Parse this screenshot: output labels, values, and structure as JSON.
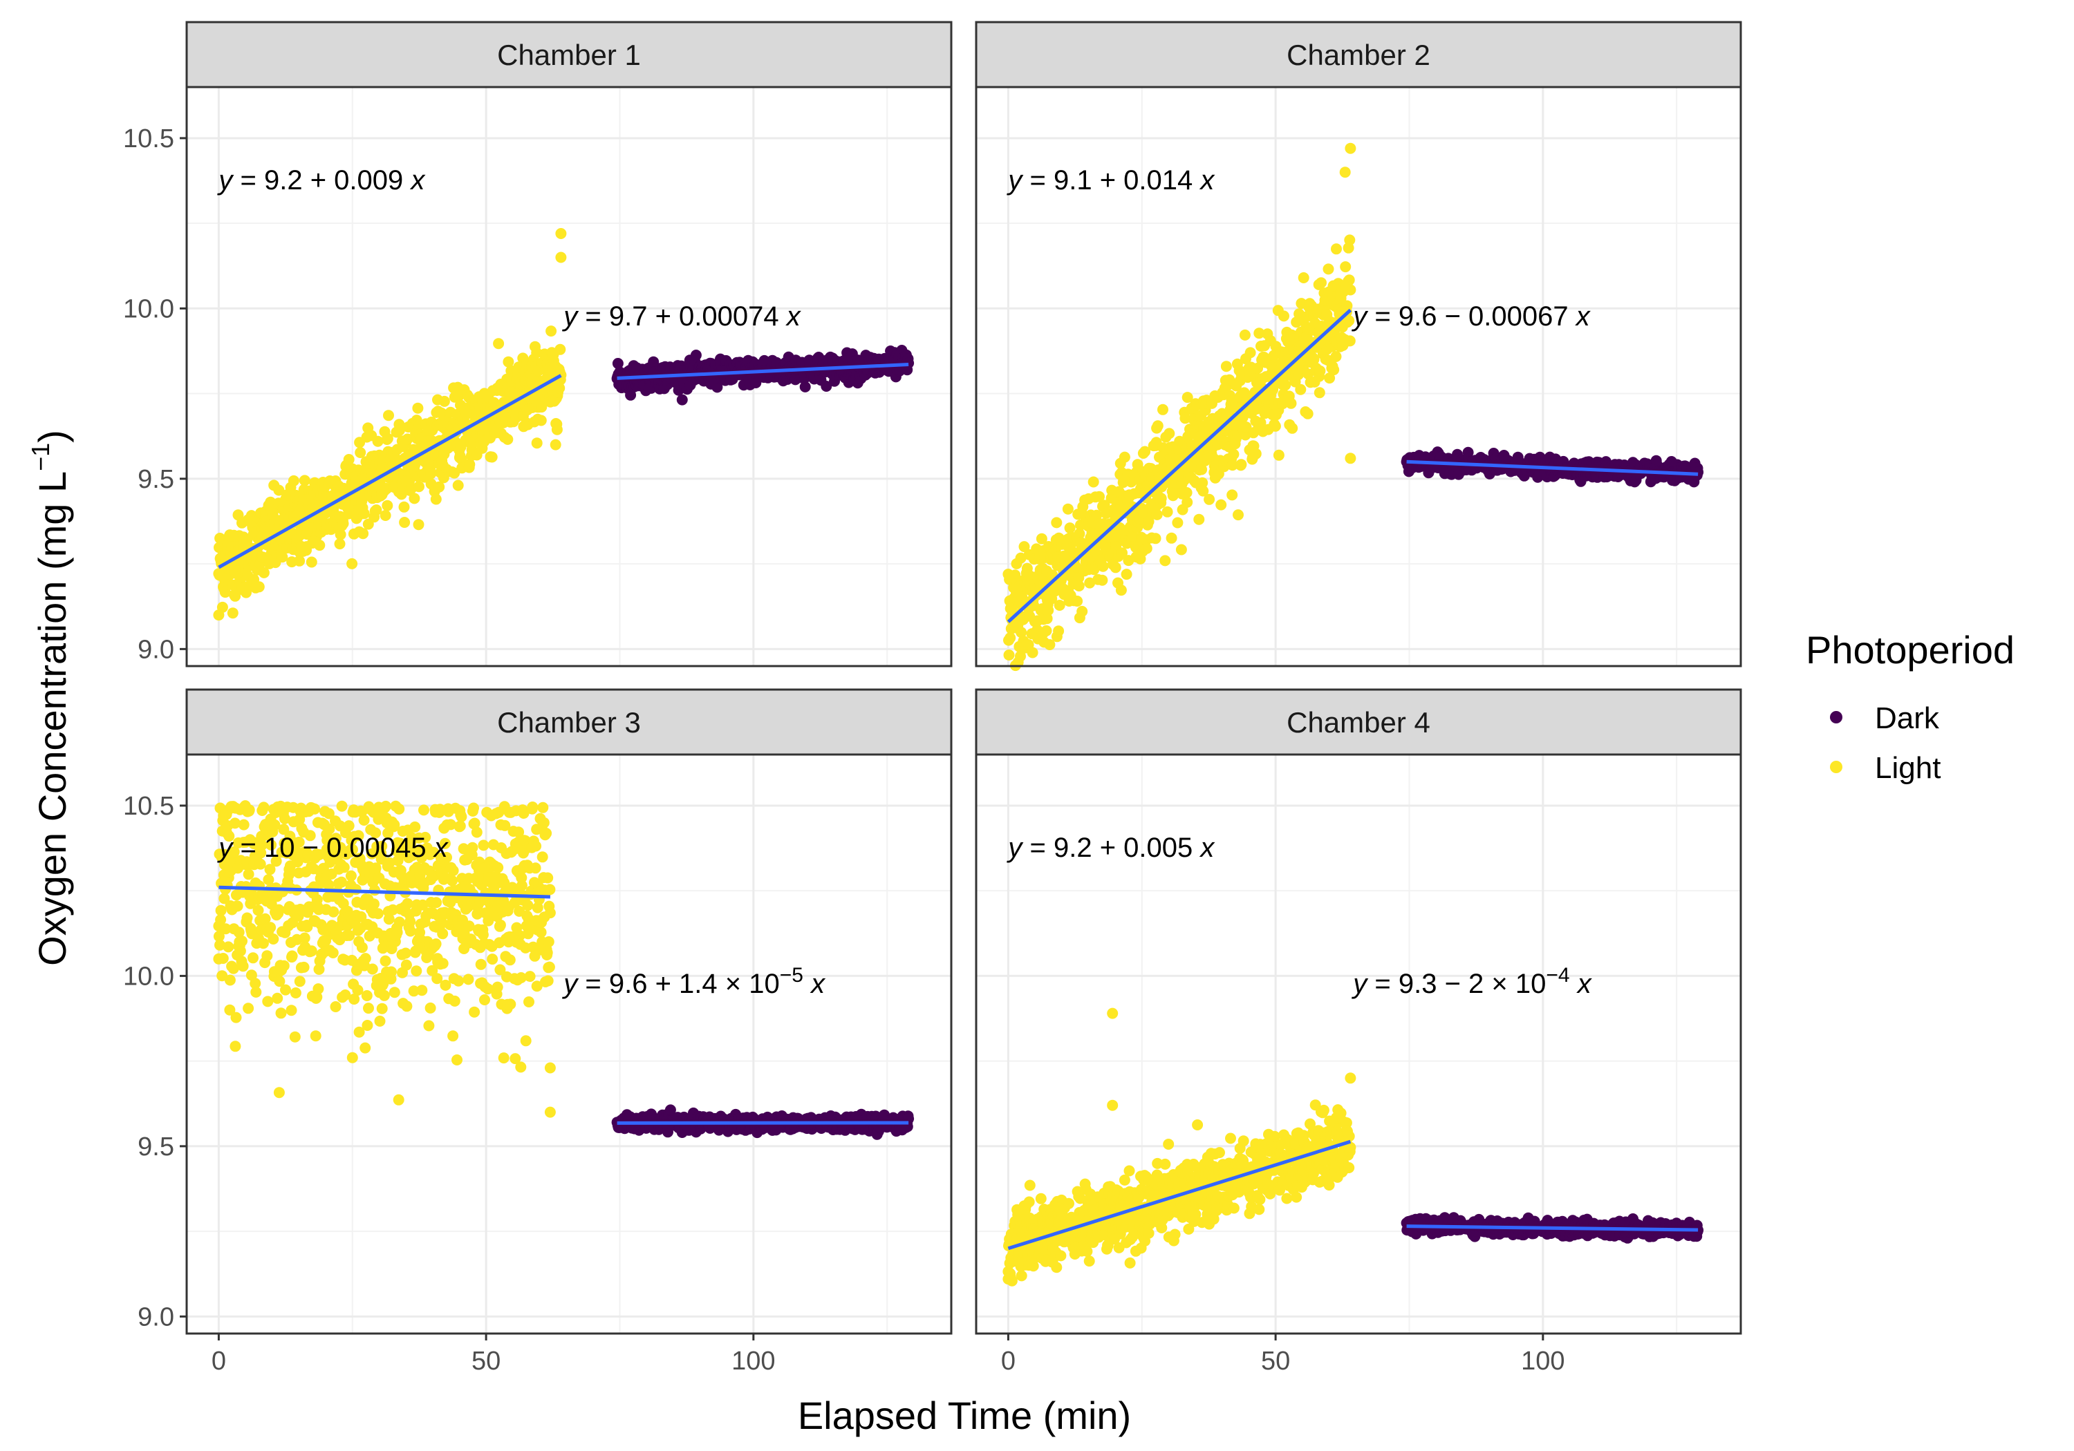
{
  "chart_data": {
    "type": "scatter",
    "xlabel": "Elapsed Time (min)",
    "ylabel": {
      "main": "Oxygen Concentration (mg L",
      "sup": "−1",
      "close": ")"
    },
    "xlim": [
      -6,
      137
    ],
    "ylim": [
      8.95,
      10.65
    ],
    "x_ticks": [
      0,
      50,
      100
    ],
    "y_ticks": [
      9.0,
      9.5,
      10.0,
      10.5
    ],
    "x_tick_labels": [
      "0",
      "50",
      "100"
    ],
    "y_tick_labels": [
      "9.0",
      "9.5",
      "10.0",
      "10.5"
    ],
    "grid": true,
    "legend": {
      "title": "Photoperiod",
      "placement": "right",
      "entries": [
        {
          "name": "Dark",
          "color": "#440154"
        },
        {
          "name": "Light",
          "color": "#FDE725"
        }
      ]
    },
    "fit_line_color": "#3366FF",
    "panels": [
      {
        "title": "Chamber 1",
        "light": {
          "x_range": [
            0,
            64
          ],
          "intercept": 9.24,
          "slope": 0.0088,
          "spread": 0.06,
          "outliers": [
            [
              0,
              9.1
            ],
            [
              64,
              10.22
            ],
            [
              64,
              10.15
            ],
            [
              63,
              9.6
            ]
          ]
        },
        "dark": {
          "x_range": [
            74.5,
            129
          ],
          "intercept": 9.74,
          "slope": 0.00074,
          "spread": 0.018
        },
        "eq_light": {
          "prefix": "y",
          "text": " = 9.2 + 0.009 ",
          "sup": "",
          "suffix": "x",
          "pos": [
            0,
            10.35
          ]
        },
        "eq_dark": {
          "prefix": "y",
          "text": " = 9.7 + 0.00074 ",
          "sup": "",
          "suffix": "x",
          "pos": [
            64.5,
            9.95
          ]
        }
      },
      {
        "title": "Chamber 2",
        "light": {
          "x_range": [
            0,
            64
          ],
          "intercept": 9.08,
          "slope": 0.0143,
          "spread": 0.08,
          "outliers": [
            [
              64,
              10.47
            ],
            [
              63,
              10.4
            ],
            [
              64,
              9.56
            ]
          ]
        },
        "dark": {
          "x_range": [
            74.5,
            129
          ],
          "intercept": 9.6,
          "slope": -0.00067,
          "spread": 0.012
        },
        "eq_light": {
          "prefix": "y",
          "text": " = 9.1 + 0.014 ",
          "sup": "",
          "suffix": "x",
          "pos": [
            0,
            10.35
          ]
        },
        "eq_dark": {
          "prefix": "y",
          "text": " = 9.6 − 0.00067 ",
          "sup": "",
          "suffix": "x",
          "pos": [
            64.5,
            9.95
          ]
        }
      },
      {
        "title": "Chamber 3",
        "light": {
          "x_range": [
            0,
            62
          ],
          "intercept": 10.26,
          "slope": -0.00045,
          "spread": 0.18,
          "outliers": [
            [
              62,
              9.73
            ],
            [
              62,
              9.6
            ],
            [
              25,
              9.76
            ],
            [
              0,
              10.05
            ]
          ]
        },
        "dark": {
          "x_range": [
            74.5,
            129
          ],
          "intercept": 9.567,
          "slope": 1.4e-05,
          "spread": 0.01
        },
        "eq_light": {
          "prefix": "y",
          "text": " = 10 − 0.00045 ",
          "sup": "",
          "suffix": "x",
          "pos": [
            0,
            10.35
          ]
        },
        "eq_dark": {
          "prefix": "y",
          "text": " = 9.6 + 1.4 × 10",
          "sup": "−5",
          "suffix": "x",
          "pos": [
            64.5,
            9.95
          ]
        }
      },
      {
        "title": "Chamber 4",
        "light": {
          "x_range": [
            0,
            64
          ],
          "intercept": 9.2,
          "slope": 0.0049,
          "spread": 0.05,
          "outliers": [
            [
              19.5,
              9.89
            ],
            [
              19.5,
              9.62
            ],
            [
              0,
              9.11
            ],
            [
              64,
              9.7
            ]
          ]
        },
        "dark": {
          "x_range": [
            74.5,
            129
          ],
          "intercept": 9.28,
          "slope": -0.0002,
          "spread": 0.01
        },
        "eq_light": {
          "prefix": "y",
          "text": " = 9.2 + 0.005 ",
          "sup": "",
          "suffix": "x",
          "pos": [
            0,
            10.35
          ]
        },
        "eq_dark": {
          "prefix": "y",
          "text": " = 9.3 − 2 × 10",
          "sup": "−4",
          "suffix": "x",
          "pos": [
            64.5,
            9.95
          ]
        }
      }
    ]
  }
}
